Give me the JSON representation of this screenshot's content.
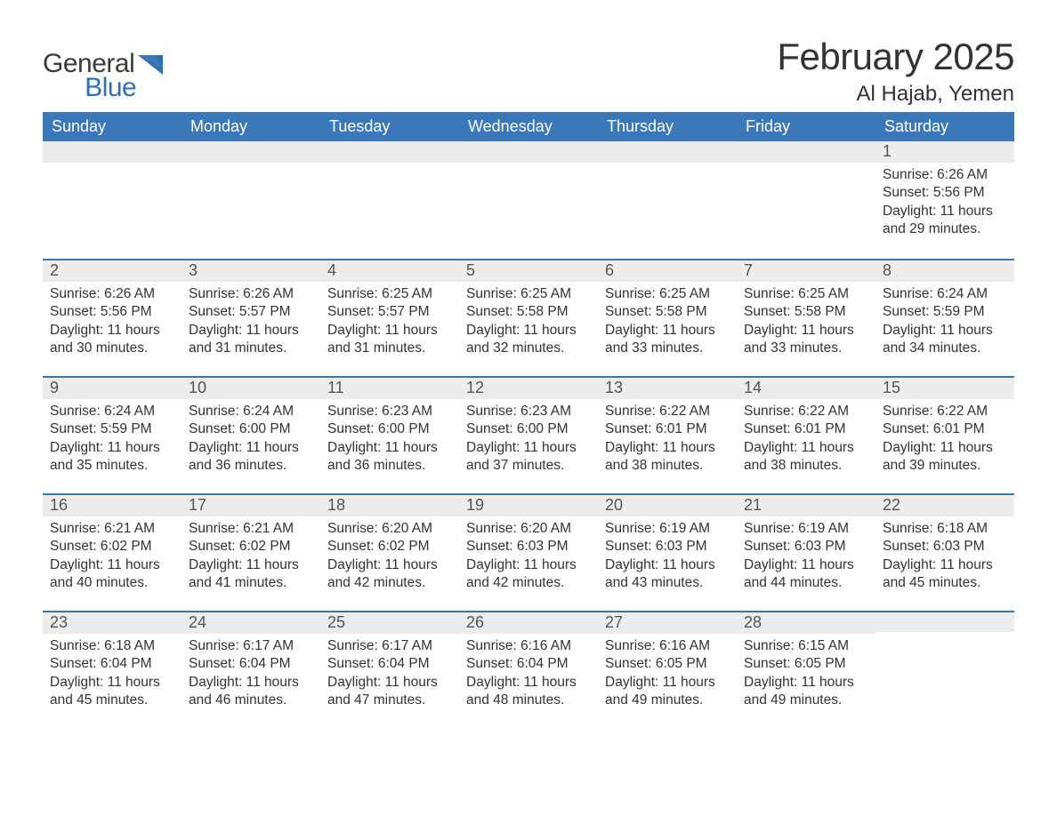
{
  "logo": {
    "general": "General",
    "blue": "Blue"
  },
  "title": "February 2025",
  "location": "Al Hajab, Yemen",
  "colors": {
    "header_bg": "#3a78b9",
    "header_text": "#ffffff",
    "daynum_bg": "#ededed",
    "border_top": "#3a78b9",
    "body_text": "#333333",
    "logo_blue": "#2f6fb3",
    "logo_gray": "#3a3a3a"
  },
  "dow": [
    "Sunday",
    "Monday",
    "Tuesday",
    "Wednesday",
    "Thursday",
    "Friday",
    "Saturday"
  ],
  "weeks": [
    [
      null,
      null,
      null,
      null,
      null,
      null,
      {
        "n": "1",
        "sr": "Sunrise: 6:26 AM",
        "ss": "Sunset: 5:56 PM",
        "dl": "Daylight: 11 hours and 29 minutes."
      }
    ],
    [
      {
        "n": "2",
        "sr": "Sunrise: 6:26 AM",
        "ss": "Sunset: 5:56 PM",
        "dl": "Daylight: 11 hours and 30 minutes."
      },
      {
        "n": "3",
        "sr": "Sunrise: 6:26 AM",
        "ss": "Sunset: 5:57 PM",
        "dl": "Daylight: 11 hours and 31 minutes."
      },
      {
        "n": "4",
        "sr": "Sunrise: 6:25 AM",
        "ss": "Sunset: 5:57 PM",
        "dl": "Daylight: 11 hours and 31 minutes."
      },
      {
        "n": "5",
        "sr": "Sunrise: 6:25 AM",
        "ss": "Sunset: 5:58 PM",
        "dl": "Daylight: 11 hours and 32 minutes."
      },
      {
        "n": "6",
        "sr": "Sunrise: 6:25 AM",
        "ss": "Sunset: 5:58 PM",
        "dl": "Daylight: 11 hours and 33 minutes."
      },
      {
        "n": "7",
        "sr": "Sunrise: 6:25 AM",
        "ss": "Sunset: 5:58 PM",
        "dl": "Daylight: 11 hours and 33 minutes."
      },
      {
        "n": "8",
        "sr": "Sunrise: 6:24 AM",
        "ss": "Sunset: 5:59 PM",
        "dl": "Daylight: 11 hours and 34 minutes."
      }
    ],
    [
      {
        "n": "9",
        "sr": "Sunrise: 6:24 AM",
        "ss": "Sunset: 5:59 PM",
        "dl": "Daylight: 11 hours and 35 minutes."
      },
      {
        "n": "10",
        "sr": "Sunrise: 6:24 AM",
        "ss": "Sunset: 6:00 PM",
        "dl": "Daylight: 11 hours and 36 minutes."
      },
      {
        "n": "11",
        "sr": "Sunrise: 6:23 AM",
        "ss": "Sunset: 6:00 PM",
        "dl": "Daylight: 11 hours and 36 minutes."
      },
      {
        "n": "12",
        "sr": "Sunrise: 6:23 AM",
        "ss": "Sunset: 6:00 PM",
        "dl": "Daylight: 11 hours and 37 minutes."
      },
      {
        "n": "13",
        "sr": "Sunrise: 6:22 AM",
        "ss": "Sunset: 6:01 PM",
        "dl": "Daylight: 11 hours and 38 minutes."
      },
      {
        "n": "14",
        "sr": "Sunrise: 6:22 AM",
        "ss": "Sunset: 6:01 PM",
        "dl": "Daylight: 11 hours and 38 minutes."
      },
      {
        "n": "15",
        "sr": "Sunrise: 6:22 AM",
        "ss": "Sunset: 6:01 PM",
        "dl": "Daylight: 11 hours and 39 minutes."
      }
    ],
    [
      {
        "n": "16",
        "sr": "Sunrise: 6:21 AM",
        "ss": "Sunset: 6:02 PM",
        "dl": "Daylight: 11 hours and 40 minutes."
      },
      {
        "n": "17",
        "sr": "Sunrise: 6:21 AM",
        "ss": "Sunset: 6:02 PM",
        "dl": "Daylight: 11 hours and 41 minutes."
      },
      {
        "n": "18",
        "sr": "Sunrise: 6:20 AM",
        "ss": "Sunset: 6:02 PM",
        "dl": "Daylight: 11 hours and 42 minutes."
      },
      {
        "n": "19",
        "sr": "Sunrise: 6:20 AM",
        "ss": "Sunset: 6:03 PM",
        "dl": "Daylight: 11 hours and 42 minutes."
      },
      {
        "n": "20",
        "sr": "Sunrise: 6:19 AM",
        "ss": "Sunset: 6:03 PM",
        "dl": "Daylight: 11 hours and 43 minutes."
      },
      {
        "n": "21",
        "sr": "Sunrise: 6:19 AM",
        "ss": "Sunset: 6:03 PM",
        "dl": "Daylight: 11 hours and 44 minutes."
      },
      {
        "n": "22",
        "sr": "Sunrise: 6:18 AM",
        "ss": "Sunset: 6:03 PM",
        "dl": "Daylight: 11 hours and 45 minutes."
      }
    ],
    [
      {
        "n": "23",
        "sr": "Sunrise: 6:18 AM",
        "ss": "Sunset: 6:04 PM",
        "dl": "Daylight: 11 hours and 45 minutes."
      },
      {
        "n": "24",
        "sr": "Sunrise: 6:17 AM",
        "ss": "Sunset: 6:04 PM",
        "dl": "Daylight: 11 hours and 46 minutes."
      },
      {
        "n": "25",
        "sr": "Sunrise: 6:17 AM",
        "ss": "Sunset: 6:04 PM",
        "dl": "Daylight: 11 hours and 47 minutes."
      },
      {
        "n": "26",
        "sr": "Sunrise: 6:16 AM",
        "ss": "Sunset: 6:04 PM",
        "dl": "Daylight: 11 hours and 48 minutes."
      },
      {
        "n": "27",
        "sr": "Sunrise: 6:16 AM",
        "ss": "Sunset: 6:05 PM",
        "dl": "Daylight: 11 hours and 49 minutes."
      },
      {
        "n": "28",
        "sr": "Sunrise: 6:15 AM",
        "ss": "Sunset: 6:05 PM",
        "dl": "Daylight: 11 hours and 49 minutes."
      },
      null
    ]
  ]
}
